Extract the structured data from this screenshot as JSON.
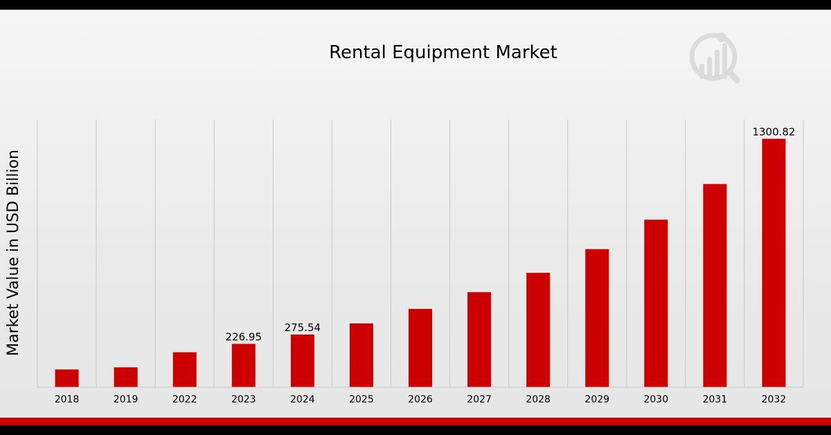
{
  "chart_data": {
    "type": "bar",
    "title": "Rental Equipment Market",
    "xlabel": "",
    "ylabel": "Market Value in USD Billion",
    "categories": [
      "2018",
      "2019",
      "2022",
      "2023",
      "2024",
      "2025",
      "2026",
      "2027",
      "2028",
      "2029",
      "2030",
      "2031",
      "2032"
    ],
    "values": [
      93,
      104,
      183,
      226.95,
      275.54,
      334,
      410,
      498,
      599,
      723,
      877,
      1064,
      1300.82
    ],
    "data_labels": [
      "",
      "",
      "",
      "226.95",
      "275.54",
      "",
      "",
      "",
      "",
      "",
      "",
      "",
      "1300.82"
    ],
    "ylim": [
      0,
      1400
    ],
    "grid": "vertical",
    "legend": "none",
    "colors": {
      "bar": "#cc0000",
      "grid": "#c8c8c8",
      "accent": "#cc0000",
      "band": "#000000"
    }
  },
  "logo": {
    "name": "chart-magnifier-logo"
  }
}
